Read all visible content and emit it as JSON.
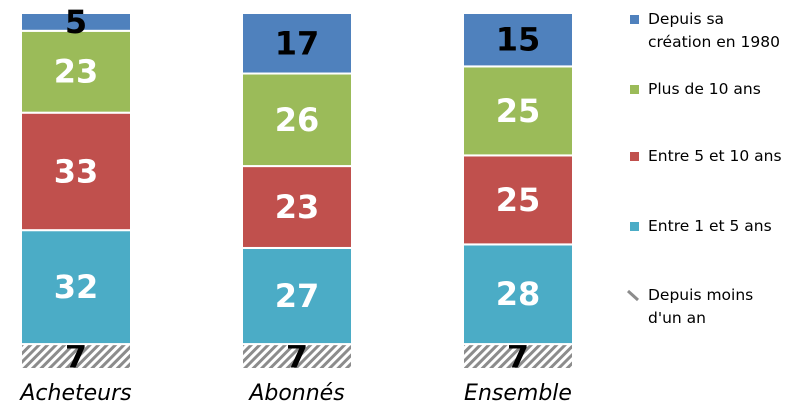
{
  "chart_data": {
    "type": "bar",
    "stacked": true,
    "categories": [
      "Acheteurs",
      "Abonnés",
      "Ensemble"
    ],
    "series": [
      {
        "name": "Depuis moins d'un an",
        "values": [
          7,
          7,
          7
        ],
        "color": "#9c9c9c",
        "pattern": "hatched",
        "label_color": "#000000"
      },
      {
        "name": "Entre 1 et 5 ans",
        "values": [
          32,
          27,
          28
        ],
        "color": "#4bacc6",
        "label_color": "#ffffff"
      },
      {
        "name": "Entre 5 et 10 ans",
        "values": [
          33,
          23,
          25
        ],
        "color": "#c0504d",
        "label_color": "#ffffff"
      },
      {
        "name": "Plus de 10 ans",
        "values": [
          23,
          26,
          25
        ],
        "color": "#9bbb59",
        "label_color": "#ffffff"
      },
      {
        "name": "Depuis sa création en 1980",
        "values": [
          5,
          17,
          15
        ],
        "color": "#4f81bd",
        "label_color": "#000000"
      }
    ],
    "legend_order": [
      {
        "name_lines": [
          "Depuis sa",
          "création en 1980"
        ],
        "color": "#4f81bd"
      },
      {
        "name_lines": [
          "Plus de 10 ans"
        ],
        "color": "#9bbb59"
      },
      {
        "name_lines": [
          "Entre 5 et 10 ans"
        ],
        "color": "#c0504d"
      },
      {
        "name_lines": [
          "Entre 1 et 5 ans"
        ],
        "color": "#4bacc6"
      },
      {
        "name_lines": [
          "Depuis moins",
          "d'un an"
        ],
        "color": "#9c9c9c",
        "pattern": "hatched"
      }
    ],
    "title": "",
    "xlabel": "",
    "ylabel": "",
    "ylim": [
      0,
      100
    ],
    "grid": false,
    "legend_position": "right"
  }
}
